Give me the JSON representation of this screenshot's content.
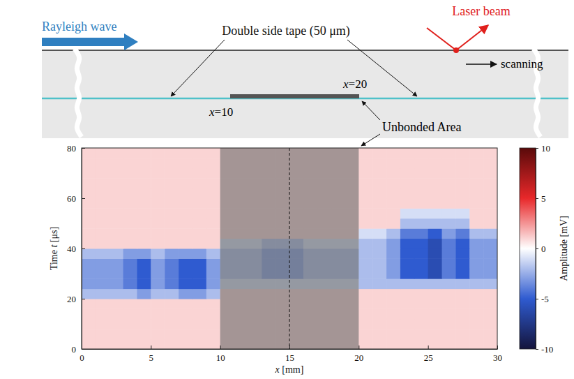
{
  "diagram": {
    "left_label": "Rayleigh wave",
    "tape_label": "Double side tape (50 μm)",
    "laser_label": "Laser beam",
    "scan_label": "scanning",
    "x_start_label": "x=10",
    "x_end_label": "x=20",
    "unbonded_label": "Unbonded Area"
  },
  "chart_data": {
    "type": "heatmap",
    "xlabel": "x [mm]",
    "ylabel": "Time t [μs]",
    "xlim": [
      0,
      30
    ],
    "ylim": [
      0,
      80
    ],
    "xticks": [
      0,
      5,
      10,
      15,
      20,
      25,
      30
    ],
    "yticks": [
      0,
      20,
      40,
      60,
      80
    ],
    "x_edges": [
      0,
      1,
      2,
      3,
      4,
      5,
      6,
      7,
      8,
      9,
      10,
      11,
      12,
      13,
      14,
      15,
      16,
      17,
      18,
      19,
      20,
      21,
      22,
      23,
      24,
      25,
      26,
      27,
      28,
      29,
      30
    ],
    "y_edges": [
      0,
      4,
      8,
      12,
      16,
      20,
      24,
      28,
      32,
      36,
      40,
      44,
      48,
      52,
      56,
      60,
      64,
      68,
      72,
      76,
      80
    ],
    "values": [
      [
        1,
        1,
        1,
        1,
        1,
        1,
        1,
        1,
        1,
        1,
        1,
        1,
        1,
        1,
        1,
        1,
        1,
        1,
        1,
        1,
        1,
        1,
        1,
        1,
        1,
        1,
        1,
        1,
        1,
        1
      ],
      [
        1,
        1,
        1,
        1,
        1,
        1,
        1,
        1,
        1,
        1,
        1,
        1,
        1,
        1,
        1,
        1,
        1,
        1,
        1,
        1,
        1,
        1,
        1,
        1,
        1,
        1,
        1,
        1,
        1,
        1
      ],
      [
        1,
        1,
        1,
        1,
        1,
        1,
        1,
        1,
        1,
        1,
        1,
        1,
        1,
        1,
        1,
        1,
        1,
        1,
        1,
        1,
        1,
        1,
        1,
        1,
        1,
        1,
        1,
        1,
        1,
        1
      ],
      [
        1,
        1,
        1,
        1,
        1,
        1,
        1,
        1,
        1,
        1,
        1,
        1,
        1,
        1,
        1,
        1,
        1,
        1,
        1,
        1,
        1,
        1,
        1,
        1,
        1,
        1,
        1,
        1,
        1,
        1
      ],
      [
        1,
        1,
        1,
        1,
        1,
        1,
        1,
        1,
        1,
        1,
        1,
        1,
        1,
        1,
        1,
        1,
        1,
        1,
        1,
        1,
        1,
        1,
        1,
        1,
        1,
        1,
        1,
        1,
        1,
        1
      ],
      [
        -2,
        -2,
        -2,
        -2,
        -3,
        -2,
        -2,
        -3,
        -3,
        -2,
        1,
        1,
        1,
        1,
        1,
        1,
        1,
        1,
        1,
        1,
        1,
        1,
        1,
        1,
        1,
        1,
        1,
        1,
        1,
        1
      ],
      [
        -3,
        -3,
        -3,
        -4,
        -5,
        -3,
        -4,
        -5,
        -5,
        -3,
        -1,
        -1,
        -1,
        -1,
        -1,
        -1,
        -1,
        -1,
        -1,
        -1,
        -2,
        -2,
        -2,
        -2,
        -2,
        -2,
        -2,
        -2,
        -2,
        -2
      ],
      [
        -3,
        -3,
        -3,
        -4,
        -5,
        -3,
        -4,
        -5,
        -5,
        -3,
        -2,
        -2,
        -2,
        -3,
        -3,
        -3,
        -2,
        -2,
        -2,
        -2,
        -2,
        -2,
        -3,
        -5,
        -5,
        -6,
        -4,
        -5,
        -3,
        -3
      ],
      [
        -3,
        -3,
        -3,
        -4,
        -5,
        -3,
        -4,
        -5,
        -5,
        -3,
        -2,
        -2,
        -2,
        -3,
        -3,
        -3,
        -2,
        -2,
        -2,
        -2,
        -2,
        -2,
        -3,
        -5,
        -5,
        -6,
        -4,
        -5,
        -3,
        -3
      ],
      [
        -2,
        -2,
        -2,
        -3,
        -3,
        -2,
        -3,
        -3,
        -3,
        -2,
        -2,
        -2,
        -2,
        -3,
        -3,
        -3,
        -2,
        -2,
        -2,
        -2,
        -2,
        -2,
        -3,
        -5,
        -5,
        -6,
        -4,
        -5,
        -3,
        -3
      ],
      [
        1,
        1,
        1,
        1,
        1,
        1,
        1,
        1,
        1,
        1,
        -1,
        -1,
        -1,
        -2,
        -2,
        -2,
        -1,
        -1,
        -1,
        -1,
        -2,
        -2,
        -3,
        -5,
        -5,
        -6,
        -4,
        -5,
        -3,
        -3
      ],
      [
        1,
        1,
        1,
        1,
        1,
        1,
        1,
        1,
        1,
        1,
        1,
        1,
        1,
        1,
        1,
        1,
        1,
        1,
        1,
        1,
        -1,
        -1,
        -2,
        -4,
        -4,
        -5,
        -3,
        -4,
        -2,
        -2
      ],
      [
        1,
        1,
        1,
        1,
        1,
        1,
        1,
        1,
        1,
        1,
        1,
        1,
        1,
        1,
        1,
        1,
        1,
        1,
        1,
        1,
        1,
        1,
        1,
        -2,
        -2,
        -2,
        -2,
        -2,
        1,
        1
      ],
      [
        1,
        1,
        1,
        1,
        1,
        1,
        1,
        1,
        1,
        1,
        1,
        1,
        1,
        1,
        1,
        1,
        1,
        1,
        1,
        1,
        1,
        1,
        1,
        -1,
        -1,
        -1,
        -1,
        -1,
        1,
        1
      ],
      [
        1,
        1,
        1,
        1,
        1,
        1,
        1,
        1,
        1,
        1,
        1,
        1,
        1,
        1,
        1,
        1,
        1,
        1,
        1,
        1,
        1,
        1,
        1,
        1,
        1,
        1,
        1,
        1,
        1,
        1
      ],
      [
        1,
        1,
        1,
        1,
        1,
        1,
        1,
        1,
        1,
        1,
        1,
        1,
        1,
        1,
        1,
        1,
        1,
        1,
        1,
        1,
        1,
        1,
        1,
        1,
        1,
        1,
        1,
        1,
        1,
        1
      ],
      [
        1,
        1,
        1,
        1,
        1,
        1,
        1,
        1,
        1,
        1,
        1,
        1,
        1,
        1,
        1,
        1,
        1,
        1,
        1,
        1,
        1,
        1,
        1,
        1,
        1,
        1,
        1,
        1,
        1,
        1
      ],
      [
        1,
        1,
        1,
        1,
        1,
        1,
        1,
        1,
        1,
        1,
        1,
        1,
        1,
        1,
        1,
        1,
        1,
        1,
        1,
        1,
        1,
        1,
        1,
        1,
        1,
        1,
        1,
        1,
        1,
        1
      ],
      [
        1,
        1,
        1,
        1,
        1,
        1,
        1,
        1,
        1,
        1,
        1,
        1,
        1,
        1,
        1,
        1,
        1,
        1,
        1,
        1,
        1,
        1,
        1,
        1,
        1,
        1,
        1,
        1,
        1,
        1
      ],
      [
        1,
        1,
        1,
        1,
        1,
        1,
        1,
        1,
        1,
        1,
        1,
        1,
        1,
        1,
        1,
        1,
        1,
        1,
        1,
        1,
        1,
        1,
        1,
        1,
        1,
        1,
        1,
        1,
        1,
        1
      ]
    ],
    "colorbar": {
      "range": [
        -10,
        10
      ],
      "ticks": [
        -10,
        -5,
        0,
        5,
        10
      ],
      "label": "Amplitude [mV]"
    },
    "shaded_x": [
      10,
      20
    ],
    "vline_x": 15
  }
}
